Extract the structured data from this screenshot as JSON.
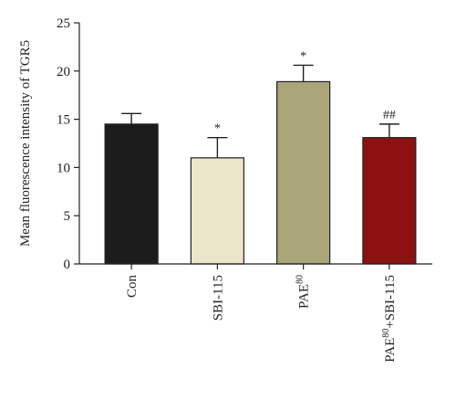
{
  "chart_data": {
    "type": "bar",
    "title": "",
    "xlabel": "",
    "ylabel": "Mean fluorescence intensity of TGR5",
    "ylim": [
      0,
      25
    ],
    "yticks": [
      0,
      5,
      10,
      15,
      20,
      25
    ],
    "grid": false,
    "categories": [
      {
        "base": "Con",
        "sup": "",
        "rest": ""
      },
      {
        "base": "SBI-115",
        "sup": "",
        "rest": ""
      },
      {
        "base": "PAE",
        "sup": "80",
        "rest": ""
      },
      {
        "base": "PAE",
        "sup": "80",
        "rest": "+SBI-115"
      }
    ],
    "values": [
      14.5,
      11.0,
      18.9,
      13.1
    ],
    "errors": [
      1.1,
      2.1,
      1.7,
      1.4
    ],
    "significance": [
      "",
      "*",
      "*",
      "##"
    ],
    "colors": [
      "#1c1c1c",
      "#ebe5c9",
      "#aba67a",
      "#8c1212"
    ]
  }
}
